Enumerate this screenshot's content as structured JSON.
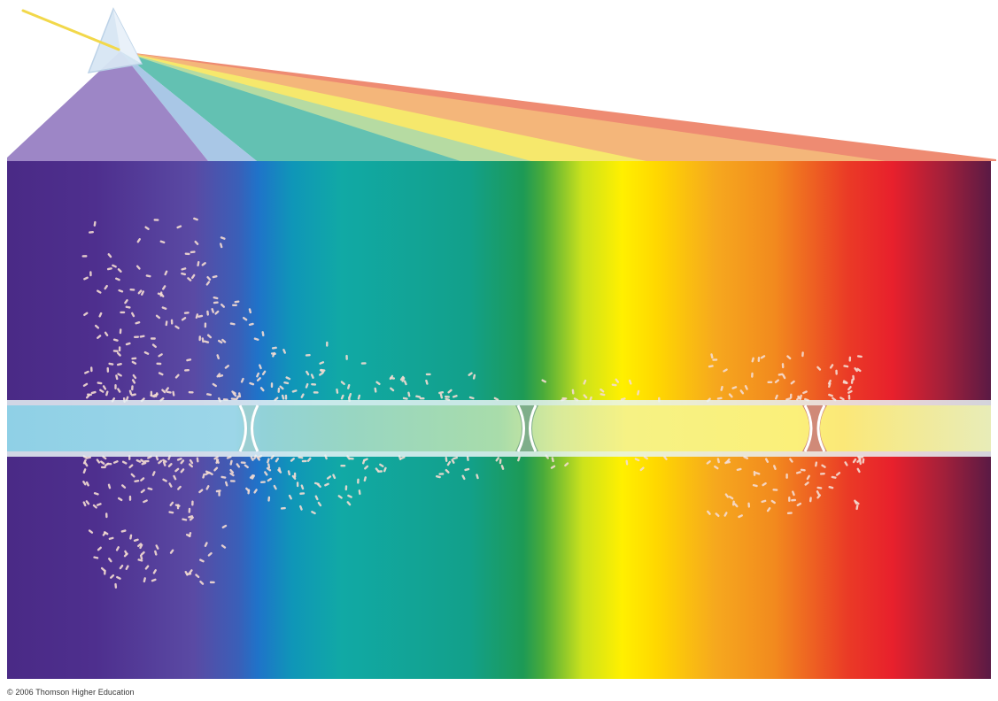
{
  "figure": {
    "credit": "© 2006 Thomson Higher Education"
  },
  "spectrum_colors": {
    "violet": "#4a2a86",
    "blue": "#1f73c9",
    "cyan": "#11a9a5",
    "green": "#1d9a55",
    "yellow": "#fff000",
    "orange": "#f28a1e",
    "red": "#e8202c",
    "dark_red": "#5a1a44"
  },
  "beam_colors": {
    "incident": "#f2d84a",
    "violet": "#9d86c6",
    "blue": "#a9c7e6",
    "teal": "#63c1b2",
    "green": "#b6dba2",
    "yellow": "#f6e86c",
    "orange": "#f4b67a",
    "red": "#ee8b72"
  },
  "filament": {
    "segment_colors": [
      "#8fd0e6",
      "#a6dcc0",
      "#f0f090",
      "#fbf07a"
    ],
    "septum_color": "#d08a78"
  },
  "particle_color": "#f4dcd2"
}
